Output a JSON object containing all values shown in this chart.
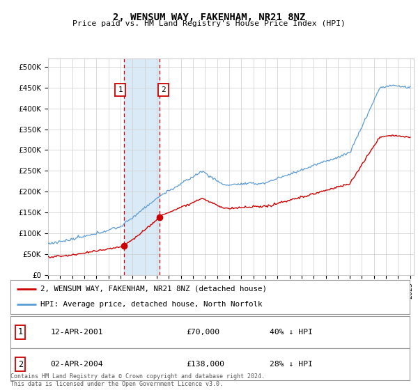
{
  "title": "2, WENSUM WAY, FAKENHAM, NR21 8NZ",
  "subtitle": "Price paid vs. HM Land Registry's House Price Index (HPI)",
  "ylim": [
    0,
    520000
  ],
  "yticks": [
    0,
    50000,
    100000,
    150000,
    200000,
    250000,
    300000,
    350000,
    400000,
    450000,
    500000
  ],
  "xlim_start": 1995.0,
  "xlim_end": 2025.3,
  "sale1_date": 2001.278,
  "sale1_price": 70000,
  "sale1_label": "1",
  "sale2_date": 2004.253,
  "sale2_price": 138000,
  "sale2_label": "2",
  "shade_color": "#daeaf7",
  "vline_color": "#cc0000",
  "red_line_color": "#cc0000",
  "blue_line_color": "#5b9bd5",
  "background_color": "#ffffff",
  "grid_color": "#cccccc",
  "legend_label_red": "2, WENSUM WAY, FAKENHAM, NR21 8NZ (detached house)",
  "legend_label_blue": "HPI: Average price, detached house, North Norfolk",
  "annotation1": "12-APR-2001",
  "annotation1_price": "£70,000",
  "annotation1_hpi": "40% ↓ HPI",
  "annotation2": "02-APR-2004",
  "annotation2_price": "£138,000",
  "annotation2_hpi": "28% ↓ HPI",
  "footer": "Contains HM Land Registry data © Crown copyright and database right 2024.\nThis data is licensed under the Open Government Licence v3.0."
}
